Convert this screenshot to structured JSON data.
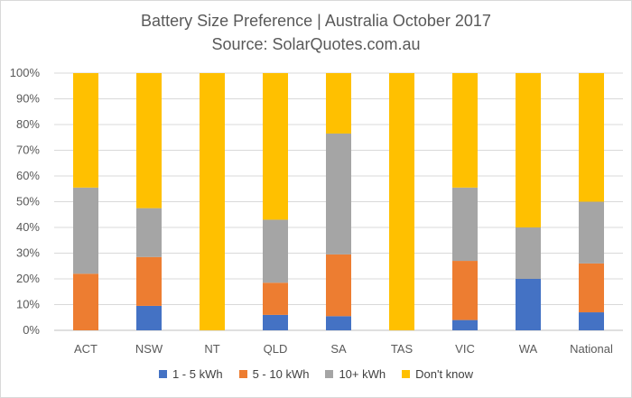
{
  "chart_data": {
    "type": "bar",
    "stacked": true,
    "title": "Battery Size Preference  | Australia October 2017",
    "subtitle": "Source: SolarQuotes.com.au",
    "xlabel": "",
    "ylabel": "",
    "ylim": [
      0,
      100
    ],
    "yticks": [
      "0%",
      "10%",
      "20%",
      "30%",
      "40%",
      "50%",
      "60%",
      "70%",
      "80%",
      "90%",
      "100%"
    ],
    "categories": [
      "ACT",
      "NSW",
      "NT",
      "QLD",
      "SA",
      "TAS",
      "VIC",
      "WA",
      "National"
    ],
    "legend_position": "bottom",
    "grid": true,
    "series": [
      {
        "name": "1 - 5 kWh",
        "color": "#4472c4",
        "values": [
          0,
          9.5,
          0,
          6,
          5.5,
          0,
          4,
          20,
          7
        ]
      },
      {
        "name": "5 - 10 kWh",
        "color": "#ed7d31",
        "values": [
          22,
          19,
          0,
          12.5,
          24,
          0,
          23,
          0,
          19
        ]
      },
      {
        "name": "10+ kWh",
        "color": "#a5a5a5",
        "values": [
          33.5,
          19,
          0,
          24.5,
          47,
          0,
          28.5,
          20,
          24
        ]
      },
      {
        "name": "Don't know",
        "color": "#ffc000",
        "values": [
          44.5,
          52.5,
          100,
          57,
          23.5,
          100,
          44.5,
          60,
          50
        ]
      }
    ]
  }
}
